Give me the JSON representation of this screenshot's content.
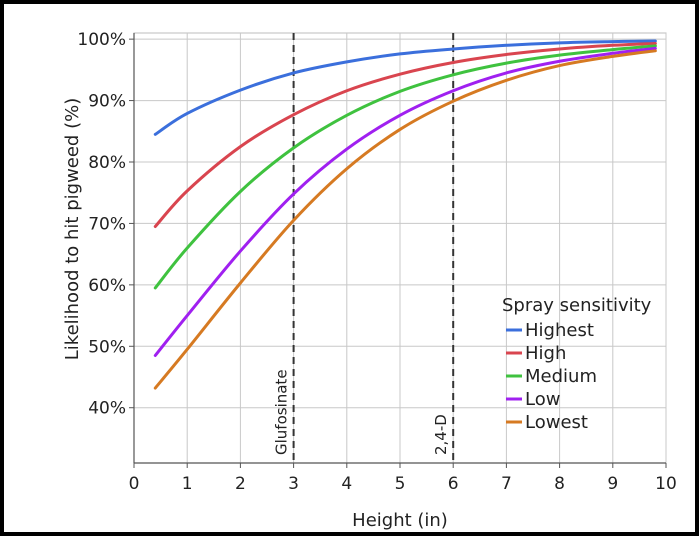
{
  "chart_data": {
    "type": "line",
    "xlabel": "Height (in)",
    "ylabel": "Likelihood to hit pigweed (%)",
    "xlim": [
      0,
      10
    ],
    "ylim": [
      31,
      101
    ],
    "grid": true,
    "x_ticks": [
      "0",
      "1",
      "2",
      "3",
      "4",
      "5",
      "6",
      "7",
      "8",
      "9",
      "10"
    ],
    "y_ticks": [
      "40%",
      "50%",
      "60%",
      "70%",
      "80%",
      "90%",
      "100%"
    ],
    "x": [
      0.4,
      1,
      2,
      3,
      4,
      5,
      6,
      7,
      8,
      9,
      9.8
    ],
    "series": [
      {
        "name": "Highest",
        "color": "#3b6fdc",
        "values": [
          84.5,
          87.9,
          91.7,
          94.5,
          96.3,
          97.6,
          98.4,
          99.0,
          99.4,
          99.6,
          99.7
        ]
      },
      {
        "name": "High",
        "color": "#d9454f",
        "values": [
          69.5,
          75.3,
          82.5,
          87.7,
          91.6,
          94.3,
          96.2,
          97.5,
          98.4,
          99.0,
          99.3
        ]
      },
      {
        "name": "Medium",
        "color": "#3fc23f",
        "values": [
          59.5,
          66.0,
          75.2,
          82.3,
          87.6,
          91.5,
          94.2,
          96.1,
          97.4,
          98.3,
          98.9
        ]
      },
      {
        "name": "Low",
        "color": "#a020f0",
        "values": [
          48.5,
          55.0,
          65.5,
          74.8,
          82.1,
          87.6,
          91.6,
          94.5,
          96.4,
          97.7,
          98.5
        ]
      },
      {
        "name": "Lowest",
        "color": "#d67a22",
        "values": [
          43.2,
          49.5,
          60.3,
          70.5,
          78.9,
          85.3,
          89.9,
          93.3,
          95.7,
          97.2,
          98.1
        ]
      }
    ],
    "reference_lines": [
      {
        "x": 3,
        "label": "Glufosinate"
      },
      {
        "x": 6,
        "label": "2,4-D"
      }
    ],
    "legend": {
      "title": "Spray sensitivity",
      "placement": "bottom-right"
    }
  }
}
